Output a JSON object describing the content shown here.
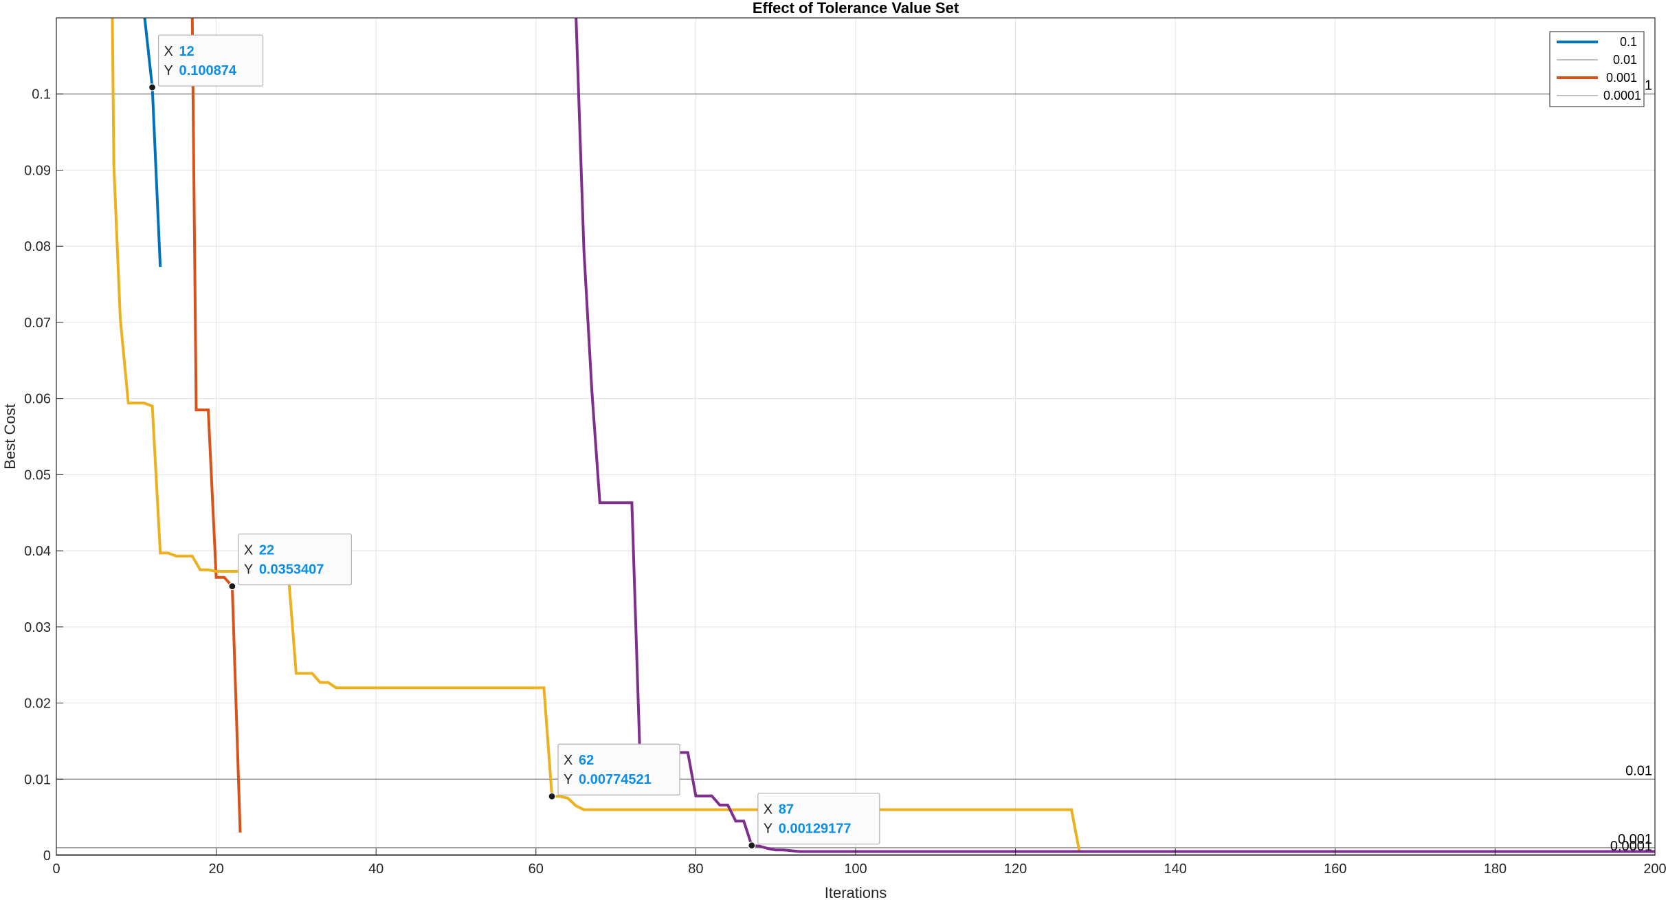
{
  "chart_data": {
    "type": "line",
    "title": "Effect of Tolerance Value Set",
    "xlabel": "Iterations",
    "ylabel": "Best Cost",
    "xlim": [
      0,
      200
    ],
    "ylim": [
      0,
      0.11
    ],
    "xticks": [
      "0",
      "20",
      "40",
      "60",
      "80",
      "100",
      "120",
      "140",
      "160",
      "180",
      "200"
    ],
    "yticks": [
      "0",
      "0.01",
      "0.02",
      "0.03",
      "0.04",
      "0.05",
      "0.06",
      "0.07",
      "0.08",
      "0.09",
      "0.1"
    ],
    "grid": true,
    "legend_position": "top-right",
    "legend": [
      "0.1",
      "0.01",
      "0.001",
      "0.0001"
    ],
    "series": [
      {
        "color": "#0072BD",
        "x": [
          11,
          12,
          13
        ],
        "y": [
          0.1105,
          0.100874,
          0.0773
        ]
      },
      {
        "color": "#D95319",
        "x": [
          17,
          17.5,
          18,
          19,
          20,
          21,
          22,
          23
        ],
        "y": [
          0.1105,
          0.0585,
          0.0585,
          0.0585,
          0.0365,
          0.0365,
          0.0353407,
          0.003
        ]
      },
      {
        "color": "#EDB120",
        "x": [
          7,
          7.2,
          8,
          9,
          10,
          11,
          12,
          13,
          14,
          15,
          16,
          17,
          18,
          19,
          20,
          21,
          22,
          23,
          24,
          25,
          26,
          27,
          28,
          29,
          30,
          31,
          32,
          33,
          34,
          35,
          36,
          40,
          50,
          60,
          61,
          62,
          63,
          64,
          65,
          66,
          68,
          70,
          80,
          100,
          120,
          127,
          128,
          130,
          150,
          200
        ],
        "y": [
          0.1105,
          0.0905,
          0.0705,
          0.0594,
          0.0594,
          0.0594,
          0.059,
          0.0397,
          0.0397,
          0.0393,
          0.0393,
          0.0393,
          0.0375,
          0.0375,
          0.0373,
          0.0373,
          0.0373,
          0.0373,
          0.0373,
          0.0373,
          0.0373,
          0.0373,
          0.0373,
          0.0373,
          0.0239,
          0.0239,
          0.0239,
          0.0227,
          0.0227,
          0.022,
          0.022,
          0.022,
          0.022,
          0.022,
          0.022,
          0.00774521,
          0.00774521,
          0.0075,
          0.0065,
          0.006,
          0.006,
          0.006,
          0.006,
          0.006,
          0.006,
          0.006,
          0.0005,
          0.0005,
          0.0005,
          0.0005
        ]
      },
      {
        "color": "#7E2F8E",
        "x": [
          65,
          66,
          67,
          68,
          69,
          70,
          71,
          72,
          73,
          74,
          75,
          76,
          77,
          78,
          79,
          80,
          81,
          82,
          83,
          84,
          85,
          86,
          87,
          88,
          89,
          90,
          91,
          92,
          93,
          95,
          100,
          120,
          150,
          200
        ],
        "y": [
          0.1105,
          0.0795,
          0.061,
          0.0463,
          0.0463,
          0.0463,
          0.0463,
          0.0463,
          0.0135,
          0.0135,
          0.0135,
          0.0135,
          0.0135,
          0.0135,
          0.0135,
          0.0078,
          0.0078,
          0.0078,
          0.0066,
          0.0066,
          0.0045,
          0.0045,
          0.00129177,
          0.0012,
          0.0009,
          0.0007,
          0.0007,
          0.0006,
          0.0005,
          0.0005,
          0.0005,
          0.0005,
          0.0005,
          0.0005
        ]
      }
    ],
    "tolerance_lines": [
      {
        "y": 0.1,
        "label": "0.1"
      },
      {
        "y": 0.01,
        "label": "0.01"
      },
      {
        "y": 0.001,
        "label": "0.001"
      },
      {
        "y": 0.0001,
        "label": "0.0001"
      }
    ],
    "datatips": [
      {
        "x": 12,
        "y": 0.100874,
        "xtext": "12",
        "ytext": "0.100874"
      },
      {
        "x": 22,
        "y": 0.0353407,
        "xtext": "22",
        "ytext": "0.0353407"
      },
      {
        "x": 62,
        "y": 0.00774521,
        "xtext": "62",
        "ytext": "0.00774521"
      },
      {
        "x": 87,
        "y": 0.00129177,
        "xtext": "87",
        "ytext": "0.00129177"
      }
    ],
    "datatip_key_x": "X",
    "datatip_key_y": "Y"
  }
}
